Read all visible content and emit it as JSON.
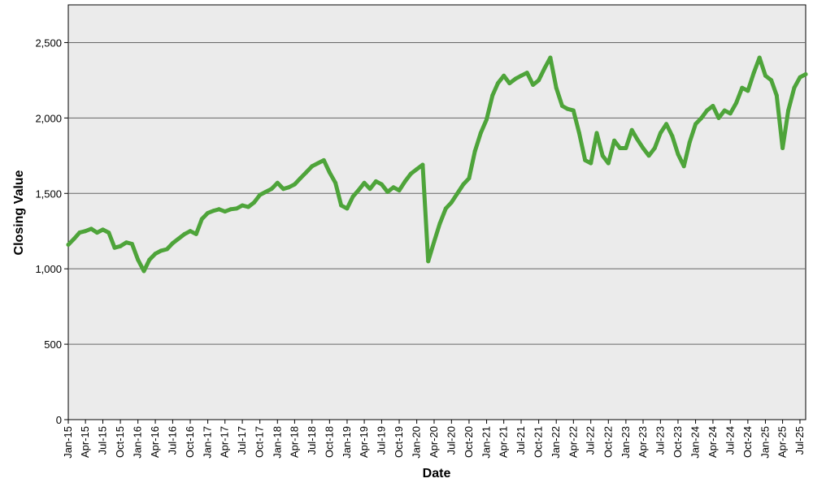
{
  "chart_data": {
    "type": "line",
    "title": "",
    "xlabel": "Date",
    "ylabel": "Closing Value",
    "x_range": [
      "2015-01-01",
      "2025-07-31"
    ],
    "ylim": [
      0,
      2750
    ],
    "y_ticks": [
      0,
      500,
      1000,
      1500,
      2000,
      2500
    ],
    "y_tick_labels": [
      "0",
      "500",
      "1,000",
      "1,500",
      "2,000",
      "2,500"
    ],
    "x_ticks": [
      "2015-01-01",
      "2015-04-01",
      "2015-07-01",
      "2015-10-01",
      "2016-01-01",
      "2016-04-01",
      "2016-07-01",
      "2016-10-01",
      "2017-01-01",
      "2017-04-01",
      "2017-07-01",
      "2017-10-01",
      "2018-01-01",
      "2018-04-01",
      "2018-07-01",
      "2018-10-01",
      "2019-01-01",
      "2019-04-01",
      "2019-07-01",
      "2019-10-01",
      "2020-01-01",
      "2020-04-01",
      "2020-07-01",
      "2020-10-01",
      "2021-01-01",
      "2021-04-01",
      "2021-07-01",
      "2021-10-01",
      "2022-01-01",
      "2022-04-01",
      "2022-07-01",
      "2022-10-01",
      "2023-01-01",
      "2023-04-01",
      "2023-07-01",
      "2023-10-01",
      "2024-01-01",
      "2024-04-01",
      "2024-07-01",
      "2024-10-01",
      "2025-01-01",
      "2025-04-01",
      "2025-07-01"
    ],
    "x_tick_labels": [
      "Jan-15",
      "Apr-15",
      "Jul-15",
      "Oct-15",
      "Jan-16",
      "Apr-16",
      "Jul-16",
      "Oct-16",
      "Jan-17",
      "Apr-17",
      "Jul-17",
      "Oct-17",
      "Jan-18",
      "Apr-18",
      "Jul-18",
      "Oct-18",
      "Jan-19",
      "Apr-19",
      "Jul-19",
      "Oct-19",
      "Jan-20",
      "Apr-20",
      "Jul-20",
      "Oct-20",
      "Jan-21",
      "Apr-21",
      "Jul-21",
      "Oct-21",
      "Jan-22",
      "Apr-22",
      "Jul-22",
      "Oct-22",
      "Jan-23",
      "Apr-23",
      "Jul-23",
      "Oct-23",
      "Jan-24",
      "Apr-24",
      "Jul-24",
      "Oct-24",
      "Jan-25",
      "Apr-25",
      "Jul-25"
    ],
    "grid": true,
    "legend": "none",
    "colors": {
      "line": "#4ea43a",
      "plot_background": "#ebebeb",
      "gridline": "#666666"
    },
    "series": [
      {
        "name": "",
        "points": [
          [
            "2015-01-01",
            1160
          ],
          [
            "2015-02-01",
            1200
          ],
          [
            "2015-03-01",
            1240
          ],
          [
            "2015-04-01",
            1250
          ],
          [
            "2015-05-01",
            1265
          ],
          [
            "2015-06-01",
            1240
          ],
          [
            "2015-07-01",
            1260
          ],
          [
            "2015-08-01",
            1240
          ],
          [
            "2015-09-01",
            1140
          ],
          [
            "2015-10-01",
            1150
          ],
          [
            "2015-11-01",
            1175
          ],
          [
            "2015-12-01",
            1165
          ],
          [
            "2016-01-01",
            1060
          ],
          [
            "2016-02-01",
            985
          ],
          [
            "2016-03-01",
            1060
          ],
          [
            "2016-04-01",
            1100
          ],
          [
            "2016-05-01",
            1120
          ],
          [
            "2016-06-01",
            1130
          ],
          [
            "2016-07-01",
            1170
          ],
          [
            "2016-08-01",
            1200
          ],
          [
            "2016-09-01",
            1230
          ],
          [
            "2016-10-01",
            1250
          ],
          [
            "2016-11-01",
            1230
          ],
          [
            "2016-12-01",
            1330
          ],
          [
            "2017-01-01",
            1370
          ],
          [
            "2017-02-01",
            1385
          ],
          [
            "2017-03-01",
            1395
          ],
          [
            "2017-04-01",
            1380
          ],
          [
            "2017-05-01",
            1395
          ],
          [
            "2017-06-01",
            1400
          ],
          [
            "2017-07-01",
            1420
          ],
          [
            "2017-08-01",
            1410
          ],
          [
            "2017-09-01",
            1440
          ],
          [
            "2017-10-01",
            1490
          ],
          [
            "2017-11-01",
            1510
          ],
          [
            "2017-12-01",
            1530
          ],
          [
            "2018-01-01",
            1570
          ],
          [
            "2018-02-01",
            1530
          ],
          [
            "2018-03-01",
            1540
          ],
          [
            "2018-04-01",
            1560
          ],
          [
            "2018-05-01",
            1600
          ],
          [
            "2018-06-01",
            1640
          ],
          [
            "2018-07-01",
            1680
          ],
          [
            "2018-08-01",
            1700
          ],
          [
            "2018-09-01",
            1720
          ],
          [
            "2018-10-01",
            1640
          ],
          [
            "2018-11-01",
            1570
          ],
          [
            "2018-12-01",
            1420
          ],
          [
            "2019-01-01",
            1400
          ],
          [
            "2019-02-01",
            1480
          ],
          [
            "2019-03-01",
            1520
          ],
          [
            "2019-04-01",
            1570
          ],
          [
            "2019-05-01",
            1530
          ],
          [
            "2019-06-01",
            1580
          ],
          [
            "2019-07-01",
            1560
          ],
          [
            "2019-08-01",
            1510
          ],
          [
            "2019-09-01",
            1540
          ],
          [
            "2019-10-01",
            1520
          ],
          [
            "2019-11-01",
            1580
          ],
          [
            "2019-12-01",
            1630
          ],
          [
            "2020-01-01",
            1660
          ],
          [
            "2020-02-01",
            1690
          ],
          [
            "2020-03-01",
            1050
          ],
          [
            "2020-04-01",
            1180
          ],
          [
            "2020-05-01",
            1300
          ],
          [
            "2020-06-01",
            1400
          ],
          [
            "2020-07-01",
            1440
          ],
          [
            "2020-08-01",
            1500
          ],
          [
            "2020-09-01",
            1560
          ],
          [
            "2020-10-01",
            1600
          ],
          [
            "2020-11-01",
            1780
          ],
          [
            "2020-12-01",
            1900
          ],
          [
            "2021-01-01",
            1990
          ],
          [
            "2021-02-01",
            2150
          ],
          [
            "2021-03-01",
            2230
          ],
          [
            "2021-04-01",
            2280
          ],
          [
            "2021-05-01",
            2230
          ],
          [
            "2021-06-01",
            2260
          ],
          [
            "2021-07-01",
            2280
          ],
          [
            "2021-08-01",
            2300
          ],
          [
            "2021-09-01",
            2220
          ],
          [
            "2021-10-01",
            2250
          ],
          [
            "2021-11-01",
            2330
          ],
          [
            "2021-12-01",
            2400
          ],
          [
            "2022-01-01",
            2200
          ],
          [
            "2022-02-01",
            2080
          ],
          [
            "2022-03-01",
            2060
          ],
          [
            "2022-04-01",
            2050
          ],
          [
            "2022-05-01",
            1900
          ],
          [
            "2022-06-01",
            1720
          ],
          [
            "2022-07-01",
            1700
          ],
          [
            "2022-08-01",
            1900
          ],
          [
            "2022-09-01",
            1750
          ],
          [
            "2022-10-01",
            1700
          ],
          [
            "2022-11-01",
            1850
          ],
          [
            "2022-12-01",
            1800
          ],
          [
            "2023-01-01",
            1800
          ],
          [
            "2023-02-01",
            1920
          ],
          [
            "2023-03-01",
            1860
          ],
          [
            "2023-04-01",
            1800
          ],
          [
            "2023-05-01",
            1750
          ],
          [
            "2023-06-01",
            1800
          ],
          [
            "2023-07-01",
            1900
          ],
          [
            "2023-08-01",
            1960
          ],
          [
            "2023-09-01",
            1880
          ],
          [
            "2023-10-01",
            1760
          ],
          [
            "2023-11-01",
            1680
          ],
          [
            "2023-12-01",
            1840
          ],
          [
            "2024-01-01",
            1960
          ],
          [
            "2024-02-01",
            2000
          ],
          [
            "2024-03-01",
            2050
          ],
          [
            "2024-04-01",
            2080
          ],
          [
            "2024-05-01",
            2000
          ],
          [
            "2024-06-01",
            2050
          ],
          [
            "2024-07-01",
            2030
          ],
          [
            "2024-08-01",
            2100
          ],
          [
            "2024-09-01",
            2200
          ],
          [
            "2024-10-01",
            2180
          ],
          [
            "2024-11-01",
            2300
          ],
          [
            "2024-12-01",
            2400
          ],
          [
            "2025-01-01",
            2280
          ],
          [
            "2025-02-01",
            2250
          ],
          [
            "2025-03-01",
            2150
          ],
          [
            "2025-04-01",
            1800
          ],
          [
            "2025-05-01",
            2050
          ],
          [
            "2025-06-01",
            2200
          ],
          [
            "2025-07-01",
            2270
          ],
          [
            "2025-07-31",
            2290
          ]
        ]
      }
    ]
  }
}
